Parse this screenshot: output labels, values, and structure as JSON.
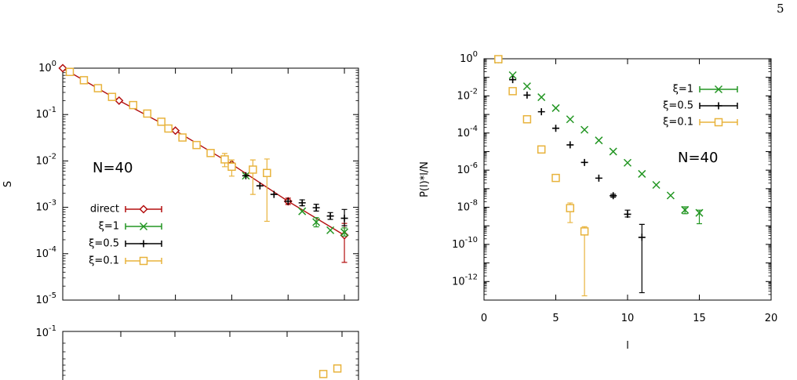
{
  "page_number": "5",
  "colors": {
    "direct": "#b30f0f",
    "xi1": "#239623",
    "xi05": "#000000",
    "xi01": "#e8b33c",
    "axis": "#000000",
    "background": "#ffffff"
  },
  "chart_data": [
    {
      "id": "left-top",
      "type": "scatter",
      "title": "",
      "annotation": "N=40",
      "xlabel": "",
      "ylabel": "S",
      "y_scale": "log",
      "ylim": [
        1e-05,
        1
      ],
      "y_tick_labels": [
        {
          "base": "10",
          "exp": "0"
        },
        {
          "base": "10",
          "exp": "-1"
        },
        {
          "base": "10",
          "exp": "-2"
        },
        {
          "base": "10",
          "exp": "-3"
        },
        {
          "base": "10",
          "exp": "-4"
        },
        {
          "base": "10",
          "exp": "-5"
        }
      ],
      "xlim": [
        0,
        21
      ],
      "x_tick_labels_visible": false,
      "legend_position": "bottom-left",
      "grid": false,
      "series": [
        {
          "name": "direct",
          "marker": "diamond",
          "line": true,
          "points": [
            [
              0,
              1.0
            ],
            [
              4,
              0.2
            ],
            [
              8,
              0.045
            ],
            [
              12,
              0.0085
            ],
            [
              16,
              0.00135
            ],
            [
              20,
              0.00025
            ]
          ],
          "errors": [
            [
              16,
              0.00115,
              0.00158
            ],
            [
              20,
              6.5e-05,
              0.00045
            ]
          ]
        },
        {
          "name": "ξ=1",
          "marker": "x",
          "points": [
            [
              13,
              0.0048
            ],
            [
              17,
              0.00082
            ],
            [
              18,
              0.00048
            ],
            [
              19,
              0.00032
            ],
            [
              20,
              0.00029
            ]
          ],
          "errors": [
            [
              18,
              0.00038,
              0.0006
            ],
            [
              20,
              0.00024,
              0.00036
            ]
          ]
        },
        {
          "name": "ξ=0.5",
          "marker": "plus",
          "points": [
            [
              12,
              0.0085
            ],
            [
              13,
              0.0048
            ],
            [
              14,
              0.0029
            ],
            [
              15,
              0.0019
            ],
            [
              16,
              0.00135
            ],
            [
              17,
              0.00125
            ],
            [
              18,
              0.00098
            ],
            [
              19,
              0.00065
            ],
            [
              20,
              0.00058
            ]
          ],
          "errors": [
            [
              17,
              0.00108,
              0.00145
            ],
            [
              18,
              0.00083,
              0.00116
            ],
            [
              19,
              0.00055,
              0.00077
            ],
            [
              20,
              0.0004,
              0.0009
            ]
          ]
        },
        {
          "name": "ξ=0.1",
          "marker": "square",
          "points": [
            [
              0.5,
              0.83
            ],
            [
              1.5,
              0.55
            ],
            [
              2.5,
              0.37
            ],
            [
              3.5,
              0.24
            ],
            [
              5,
              0.16
            ],
            [
              6,
              0.105
            ],
            [
              7,
              0.07
            ],
            [
              7.5,
              0.05
            ],
            [
              8.5,
              0.032
            ],
            [
              9.5,
              0.022
            ],
            [
              10.5,
              0.0148
            ],
            [
              11.5,
              0.0108
            ],
            [
              12,
              0.0075
            ],
            [
              13.5,
              0.0065
            ],
            [
              14.5,
              0.0055
            ]
          ],
          "errors": [
            [
              11.5,
              0.0075,
              0.0145
            ],
            [
              12,
              0.0047,
              0.0105
            ],
            [
              13.5,
              0.0019,
              0.0105
            ],
            [
              14.5,
              0.0005,
              0.011
            ]
          ]
        }
      ]
    },
    {
      "id": "left-bottom",
      "type": "scatter",
      "title": "",
      "xlabel": "",
      "ylabel": "",
      "y_scale": "log",
      "y_tick_labels": [
        {
          "base": "10",
          "exp": "-1"
        }
      ],
      "partially_visible": true,
      "series": [
        {
          "name": "",
          "marker": "square",
          "points": [
            [
              18.5,
              0.85
            ],
            [
              19.5,
              1.0
            ]
          ]
        }
      ]
    },
    {
      "id": "right",
      "type": "scatter",
      "title": "",
      "annotation": "N=40",
      "xlabel": "l",
      "ylabel": "P(l)*l/N",
      "y_scale": "log",
      "ylim": [
        1e-13,
        1
      ],
      "y_tick_labels": [
        {
          "base": "10",
          "exp": "0"
        },
        {
          "base": "10",
          "exp": "-2"
        },
        {
          "base": "10",
          "exp": "-4"
        },
        {
          "base": "10",
          "exp": "-6"
        },
        {
          "base": "10",
          "exp": "-8"
        },
        {
          "base": "10",
          "exp": "-10"
        },
        {
          "base": "10",
          "exp": "-12"
        }
      ],
      "xlim": [
        0,
        20
      ],
      "x_tick_labels": [
        "0",
        "5",
        "10",
        "15",
        "20"
      ],
      "legend_position": "top-right",
      "grid": false,
      "series": [
        {
          "name": "ξ=1",
          "marker": "x",
          "points": [
            [
              1,
              0.9
            ],
            [
              2,
              0.13
            ],
            [
              3,
              0.033
            ],
            [
              4,
              0.0085
            ],
            [
              5,
              0.0022
            ],
            [
              6,
              0.00055
            ],
            [
              7,
              0.00015
            ],
            [
              8,
              4e-05
            ],
            [
              9,
              1e-05
            ],
            [
              10,
              2.5e-06
            ],
            [
              11,
              6.3e-07
            ],
            [
              12,
              1.6e-07
            ],
            [
              13,
              4.3e-08
            ],
            [
              14,
              7.2e-09
            ],
            [
              15,
              5e-09
            ]
          ],
          "errors": [
            [
              14,
              4.5e-09,
              1.05e-08
            ],
            [
              15,
              1.3e-09,
              7e-09
            ]
          ]
        },
        {
          "name": "ξ=0.5",
          "marker": "plus",
          "points": [
            [
              1,
              0.9
            ],
            [
              2,
              0.075
            ],
            [
              3,
              0.011
            ],
            [
              4,
              0.0014
            ],
            [
              5,
              0.00018
            ],
            [
              6,
              2.3e-05
            ],
            [
              7,
              2.6e-06
            ],
            [
              8,
              3.7e-07
            ],
            [
              9,
              4.2e-08
            ],
            [
              10,
              4.2e-09
            ],
            [
              11,
              2.4e-10
            ]
          ],
          "errors": [
            [
              9,
              3.5e-08,
              5e-08
            ],
            [
              10,
              3e-09,
              7e-09
            ],
            [
              11,
              2.5e-13,
              1.2e-09
            ]
          ]
        },
        {
          "name": "ξ=0.1",
          "marker": "square",
          "points": [
            [
              1,
              0.95
            ],
            [
              2,
              0.018
            ],
            [
              3,
              0.00055
            ],
            [
              4,
              1.3e-05
            ],
            [
              5,
              3.8e-07
            ],
            [
              6,
              9e-09
            ],
            [
              7,
              5e-10
            ]
          ],
          "errors": [
            [
              6,
              1.5e-09,
              1.7e-08
            ],
            [
              7,
              1.7e-13,
              9e-10
            ]
          ]
        }
      ]
    }
  ]
}
